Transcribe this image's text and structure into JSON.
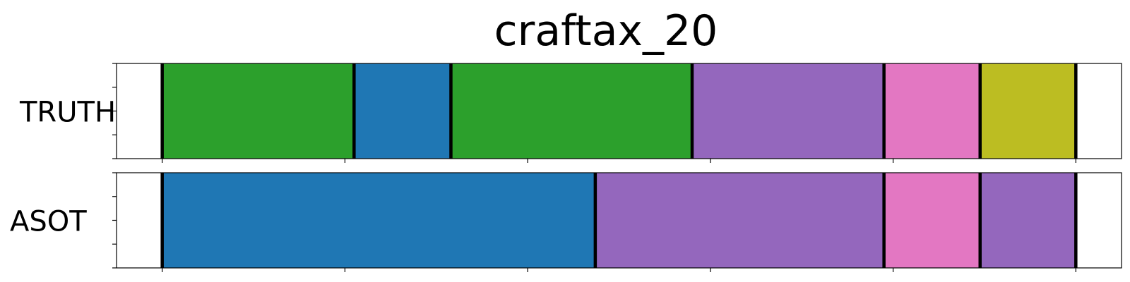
{
  "chart_data": {
    "type": "segmentation",
    "title": "craftax_20",
    "x_range": [
      -12.5,
      262.5
    ],
    "x_ticks": [
      0,
      50,
      100,
      150,
      200,
      250
    ],
    "boundary_color": "#000000",
    "background_color": "#ffffff",
    "rows": [
      {
        "label": "TRUTH",
        "segments": [
          {
            "start": 0,
            "end": 52.5,
            "color": "#2ca02c"
          },
          {
            "start": 52.5,
            "end": 79,
            "color": "#1f77b4"
          },
          {
            "start": 79,
            "end": 145,
            "color": "#2ca02c"
          },
          {
            "start": 145,
            "end": 197.5,
            "color": "#9467bd"
          },
          {
            "start": 197.5,
            "end": 223.8,
            "color": "#e377c2"
          },
          {
            "start": 223.8,
            "end": 250,
            "color": "#bcbd22"
          }
        ]
      },
      {
        "label": "ASOT",
        "segments": [
          {
            "start": 0,
            "end": 118.5,
            "color": "#1f77b4"
          },
          {
            "start": 118.5,
            "end": 197.5,
            "color": "#9467bd"
          },
          {
            "start": 197.5,
            "end": 223.8,
            "color": "#e377c2"
          },
          {
            "start": 223.8,
            "end": 250,
            "color": "#9467bd"
          }
        ]
      }
    ]
  }
}
